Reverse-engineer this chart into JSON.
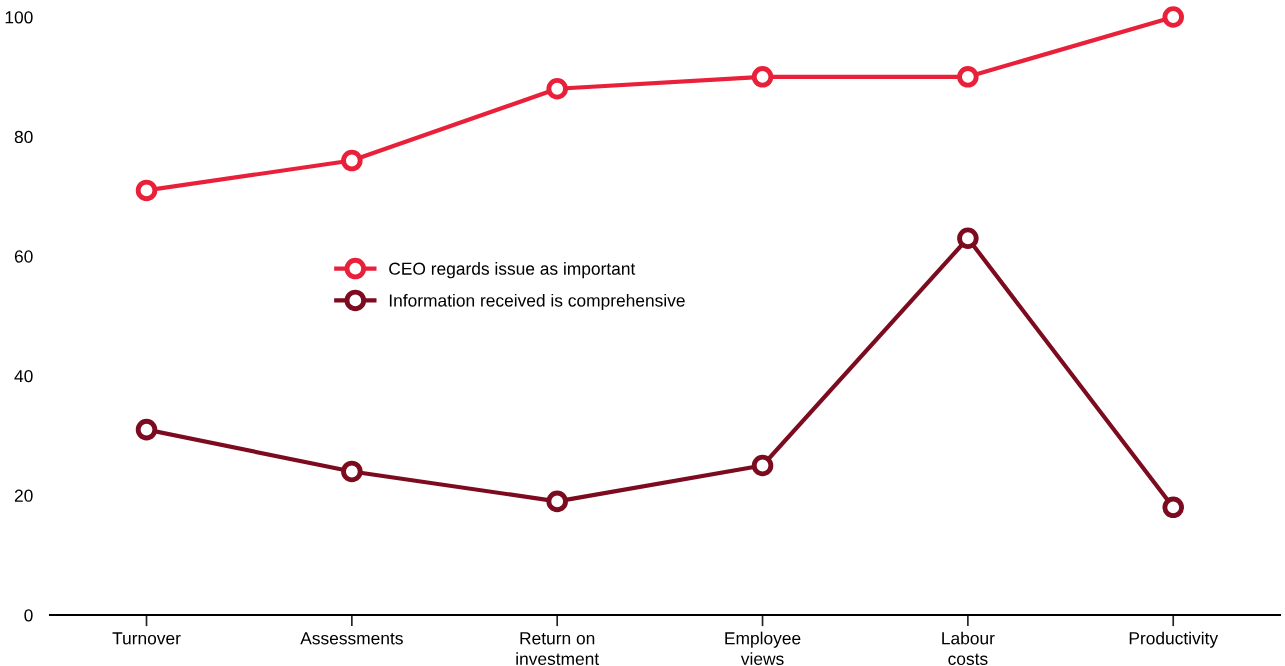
{
  "chart_data": {
    "type": "line",
    "categories": [
      "Turnover",
      "Assessments",
      "Return on\ninvestment",
      "Employee\nviews",
      "Labour\ncosts",
      "Productivity"
    ],
    "series": [
      {
        "name": "CEO regards issue as important",
        "color": "#e8203a",
        "values": [
          71,
          76,
          88,
          90,
          90,
          100
        ]
      },
      {
        "name": "Information received is comprehensive",
        "color": "#7d0b1f",
        "values": [
          31,
          24,
          19,
          25,
          63,
          18
        ]
      }
    ],
    "ylim": [
      0,
      100
    ],
    "yticks": [
      0,
      20,
      40,
      60,
      80,
      100
    ],
    "marker": "circle",
    "line_style": "solid",
    "grid": false,
    "legend": "center left"
  }
}
